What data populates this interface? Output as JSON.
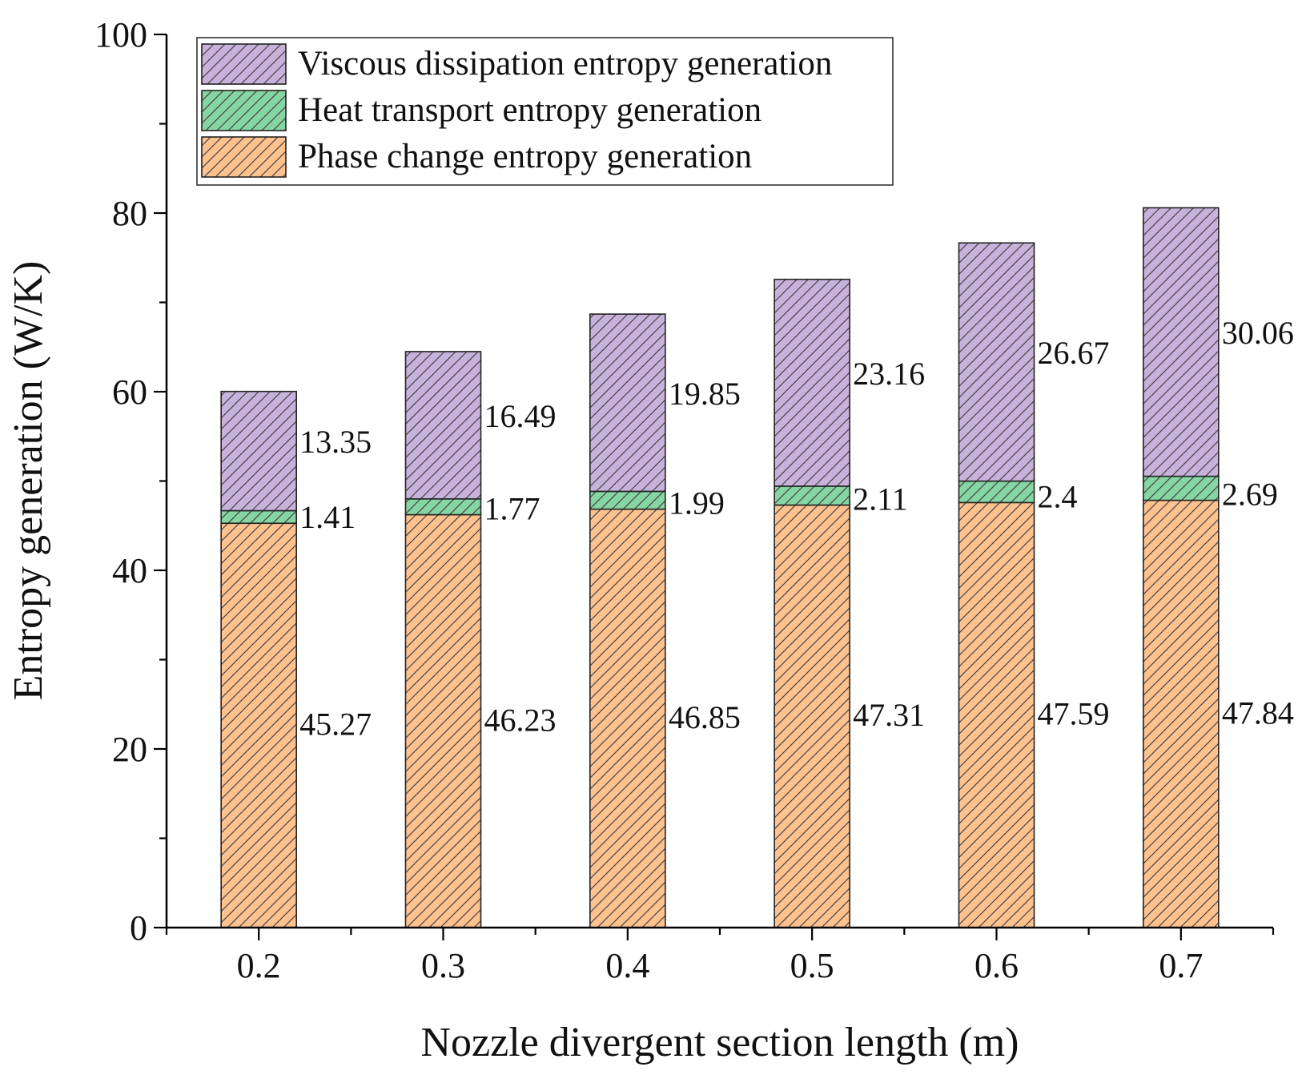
{
  "chart_data": {
    "type": "bar",
    "stacked": true,
    "categories": [
      "0.2",
      "0.3",
      "0.4",
      "0.5",
      "0.6",
      "0.7"
    ],
    "series": [
      {
        "name": "Phase change entropy generation",
        "values": [
          45.27,
          46.23,
          46.85,
          47.31,
          47.59,
          47.84
        ],
        "labels": [
          "45.27",
          "46.23",
          "46.85",
          "47.31",
          "47.59",
          "47.84"
        ],
        "color": "#FFC28F",
        "hatch": "diagonal"
      },
      {
        "name": "Heat transport entropy generation",
        "values": [
          1.41,
          1.77,
          1.99,
          2.11,
          2.4,
          2.69
        ],
        "labels": [
          "1.41",
          "1.77",
          "1.99",
          "2.11",
          "2.4",
          "2.69"
        ],
        "color": "#85D6A2",
        "hatch": "diagonal"
      },
      {
        "name": "Viscous dissipation entropy generation",
        "values": [
          13.35,
          16.49,
          19.85,
          23.16,
          26.67,
          30.06
        ],
        "labels": [
          "13.35",
          "16.49",
          "19.85",
          "23.16",
          "26.67",
          "30.06"
        ],
        "color": "#C8B2DB",
        "hatch": "diagonal"
      }
    ],
    "xlabel": "Nozzle divergent section length (m)",
    "ylabel": "Entropy generation (W/K)",
    "ylim": [
      0,
      100
    ],
    "yticks": [
      "0",
      "20",
      "40",
      "60",
      "80",
      "100"
    ],
    "grid": false,
    "legend_position": "top-left",
    "legend_order": [
      "Viscous dissipation entropy generation",
      "Heat transport entropy generation",
      "Phase change entropy generation"
    ]
  }
}
